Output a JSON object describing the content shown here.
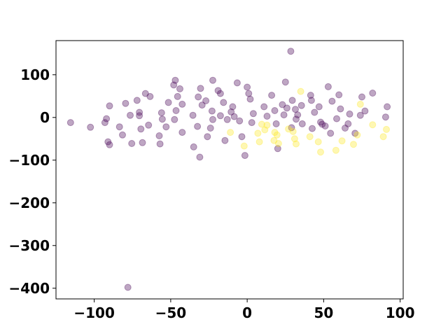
{
  "chart_data": {
    "type": "scatter",
    "xlim": [
      -125,
      102
    ],
    "ylim": [
      -425,
      180
    ],
    "xticks": [
      -100,
      -50,
      0,
      50,
      100
    ],
    "xtick_labels": [
      "−100",
      "−50",
      "0",
      "50",
      "100"
    ],
    "yticks": [
      100,
      0,
      -100,
      -200,
      -300,
      -400
    ],
    "ytick_labels": [
      "100",
      "0",
      "−100",
      "−200",
      "−300",
      "−400"
    ],
    "grid": false,
    "legend": "none",
    "marker_alpha": 0.35,
    "series": [
      {
        "color": "#440154",
        "points": [
          [
            -115.5,
            -12
          ],
          [
            -102.5,
            -23
          ],
          [
            -93,
            -12
          ],
          [
            -92,
            -3
          ],
          [
            -91,
            -57
          ],
          [
            -90,
            -64
          ],
          [
            -90,
            27
          ],
          [
            -83.5,
            -22
          ],
          [
            -81.5,
            -41
          ],
          [
            -79.5,
            33
          ],
          [
            -76.5,
            5
          ],
          [
            -75.5,
            -61
          ],
          [
            -72,
            40
          ],
          [
            -70.5,
            12
          ],
          [
            -70.5,
            4
          ],
          [
            -69.5,
            -27
          ],
          [
            -68.5,
            -59
          ],
          [
            -66.5,
            56
          ],
          [
            -64.5,
            -18
          ],
          [
            -63.5,
            49
          ],
          [
            -57.5,
            -43
          ],
          [
            -57,
            -62
          ],
          [
            -56,
            11
          ],
          [
            -55.5,
            -4
          ],
          [
            -53,
            -22
          ],
          [
            -51.5,
            35
          ],
          [
            -48,
            76
          ],
          [
            -47.5,
            -5
          ],
          [
            -47,
            87
          ],
          [
            -46.5,
            16
          ],
          [
            -45.5,
            49
          ],
          [
            -44,
            67
          ],
          [
            -42.5,
            -35
          ],
          [
            -42.5,
            31
          ],
          [
            -35.5,
            5
          ],
          [
            -35,
            -69
          ],
          [
            -32.5,
            -21
          ],
          [
            -32,
            48
          ],
          [
            -31,
            -93
          ],
          [
            -30.5,
            68
          ],
          [
            -29.5,
            29
          ],
          [
            -27,
            39
          ],
          [
            -26,
            -45
          ],
          [
            -24,
            -25
          ],
          [
            -23,
            15
          ],
          [
            -22.5,
            87
          ],
          [
            -22.5,
            -5
          ],
          [
            -19,
            63
          ],
          [
            -17.5,
            4
          ],
          [
            -17.5,
            56
          ],
          [
            -15.5,
            35
          ],
          [
            -14.5,
            -54
          ],
          [
            -13,
            -5
          ],
          [
            -10.5,
            13
          ],
          [
            -9.5,
            25
          ],
          [
            -8.5,
            2
          ],
          [
            -6.5,
            81
          ],
          [
            -5,
            -8
          ],
          [
            -3.5,
            -45
          ],
          [
            -1.5,
            -89
          ],
          [
            0,
            71
          ],
          [
            1,
            56
          ],
          [
            2,
            43
          ],
          [
            3,
            -12
          ],
          [
            4,
            9
          ],
          [
            11,
            25
          ],
          [
            13,
            3
          ],
          [
            16,
            52
          ],
          [
            18,
            16
          ],
          [
            19,
            -15
          ],
          [
            20,
            -73
          ],
          [
            23,
            30
          ],
          [
            24,
            6
          ],
          [
            25,
            83
          ],
          [
            26,
            22
          ],
          [
            28.5,
            155
          ],
          [
            29,
            -24
          ],
          [
            29.5,
            40
          ],
          [
            31.5,
            19
          ],
          [
            32,
            -4
          ],
          [
            33,
            6
          ],
          [
            35.5,
            28
          ],
          [
            36,
            -15
          ],
          [
            41.5,
            52
          ],
          [
            42,
            40
          ],
          [
            42.5,
            -26
          ],
          [
            44,
            12
          ],
          [
            47,
            25
          ],
          [
            48,
            -11
          ],
          [
            49,
            -16
          ],
          [
            51,
            -20
          ],
          [
            53,
            72
          ],
          [
            54.5,
            -37
          ],
          [
            55.5,
            38
          ],
          [
            58.5,
            -3
          ],
          [
            60,
            53
          ],
          [
            61,
            20
          ],
          [
            64,
            -25
          ],
          [
            66,
            -15
          ],
          [
            67,
            8
          ],
          [
            70.5,
            -37
          ],
          [
            74,
            5
          ],
          [
            75,
            48
          ],
          [
            77,
            15
          ],
          [
            82,
            57
          ],
          [
            90.5,
            1
          ],
          [
            91.5,
            25
          ]
        ]
      },
      {
        "color": "#fde725",
        "points": [
          [
            -11,
            -35
          ],
          [
            -2,
            -67
          ],
          [
            7,
            -37
          ],
          [
            8,
            -57
          ],
          [
            9.5,
            -16
          ],
          [
            11.5,
            -29
          ],
          [
            13,
            -18
          ],
          [
            17.5,
            -54
          ],
          [
            18,
            -35
          ],
          [
            19.5,
            -41
          ],
          [
            20.5,
            -61
          ],
          [
            27,
            -27
          ],
          [
            30,
            -33
          ],
          [
            31,
            -50
          ],
          [
            32,
            -62
          ],
          [
            35,
            61
          ],
          [
            41,
            -45
          ],
          [
            46.5,
            -57
          ],
          [
            48,
            -81
          ],
          [
            58,
            -77
          ],
          [
            62,
            -55
          ],
          [
            69.5,
            -63
          ],
          [
            72,
            -41
          ],
          [
            74,
            31
          ],
          [
            82,
            -17
          ],
          [
            89,
            -45
          ],
          [
            91,
            -28
          ]
        ]
      },
      {
        "color": "#440154",
        "points": [
          [
            -78,
            -398
          ]
        ]
      }
    ]
  }
}
